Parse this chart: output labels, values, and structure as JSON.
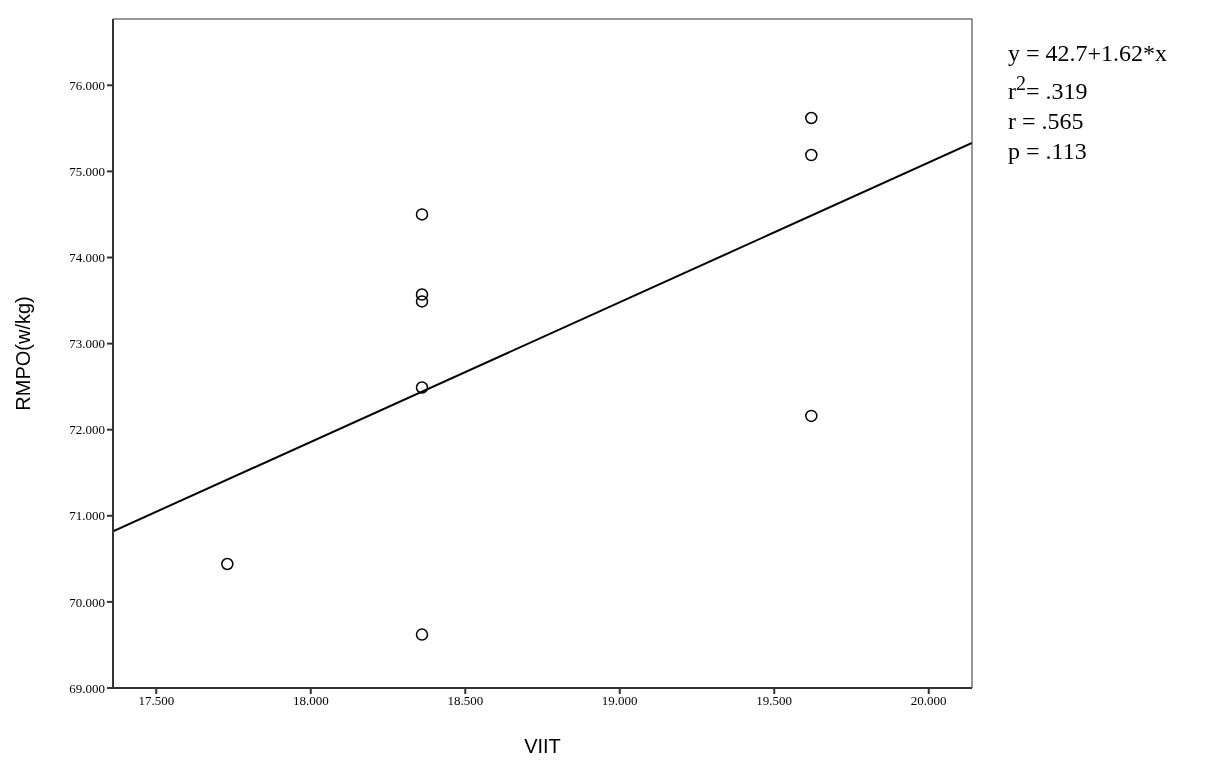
{
  "chart_data": {
    "type": "scatter",
    "xlabel": "VIIT",
    "ylabel": "RMPO(w/kg)",
    "xlim": [
      17.36,
      20.14
    ],
    "ylim": [
      69,
      76.77
    ],
    "xticks": [
      {
        "value": 17.5,
        "label": "17.500"
      },
      {
        "value": 18,
        "label": "18.000"
      },
      {
        "value": 18.5,
        "label": "18.500"
      },
      {
        "value": 19,
        "label": "19.000"
      },
      {
        "value": 19.5,
        "label": "19.500"
      },
      {
        "value": 20,
        "label": "20.000"
      }
    ],
    "yticks": [
      {
        "value": 69,
        "label": "69.000"
      },
      {
        "value": 70,
        "label": "70.000"
      },
      {
        "value": 71,
        "label": "71.000"
      },
      {
        "value": 72,
        "label": "72.000"
      },
      {
        "value": 73,
        "label": "73.000"
      },
      {
        "value": 74,
        "label": "74.000"
      },
      {
        "value": 75,
        "label": "75.000"
      },
      {
        "value": 76,
        "label": "76.000"
      }
    ],
    "series": [
      {
        "marker": "circle",
        "color": "#000000",
        "x": [
          17.73,
          18.36,
          18.36,
          18.36,
          18.36,
          18.36,
          19.62,
          19.62,
          19.62
        ],
        "values": [
          70.44,
          69.62,
          72.49,
          73.49,
          73.57,
          74.5,
          72.16,
          75.19,
          75.62
        ]
      },
      {
        "type": "line",
        "marker": "none",
        "color": "#000000",
        "x": [
          17.36,
          20.14
        ],
        "values": [
          70.82,
          75.33
        ]
      }
    ],
    "annotations": [
      "y = 42.7+1.62*x",
      "r$^{2}$= .319",
      "r = .565",
      "p = .113"
    ]
  }
}
